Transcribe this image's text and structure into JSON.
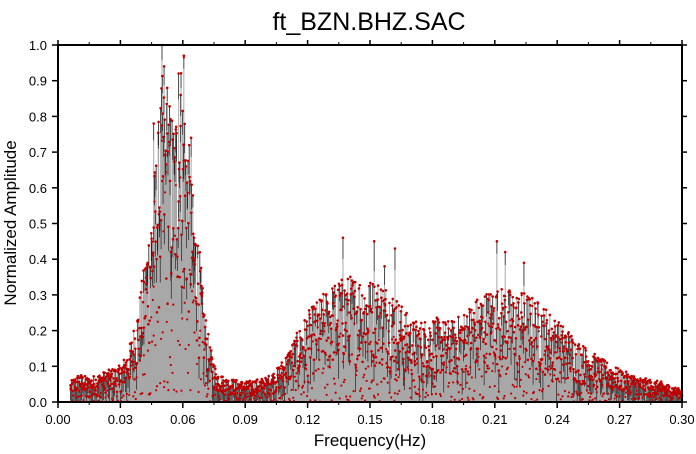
{
  "chart_data": {
    "type": "bar",
    "title": "ft_BZN.BHZ.SAC",
    "xlabel": "Frequency(Hz)",
    "ylabel": "Normalized Amplitude",
    "xlim": [
      0.0,
      0.3
    ],
    "ylim": [
      0.0,
      1.0
    ],
    "x_ticks": [
      "0.00",
      "0.03",
      "0.06",
      "0.09",
      "0.12",
      "0.15",
      "0.18",
      "0.21",
      "0.24",
      "0.27",
      "0.30"
    ],
    "y_ticks": [
      "0.0",
      "0.1",
      "0.2",
      "0.3",
      "0.4",
      "0.5",
      "0.6",
      "0.7",
      "0.8",
      "0.9",
      "1.0"
    ],
    "grid": false,
    "style": "stem bars with red point markers, dense amplitude spectrum",
    "colors": {
      "bar": "#a8a8a8",
      "stem": "#222222",
      "marker": "#c00000"
    },
    "envelope_description": "approximate spectral envelope (frequency Hz, amplitude) traced from the figure",
    "envelope": [
      [
        0.006,
        0.05
      ],
      [
        0.01,
        0.07
      ],
      [
        0.015,
        0.06
      ],
      [
        0.02,
        0.07
      ],
      [
        0.025,
        0.08
      ],
      [
        0.03,
        0.09
      ],
      [
        0.034,
        0.13
      ],
      [
        0.038,
        0.22
      ],
      [
        0.041,
        0.32
      ],
      [
        0.044,
        0.45
      ],
      [
        0.047,
        0.6
      ],
      [
        0.05,
        0.8
      ],
      [
        0.053,
        0.75
      ],
      [
        0.056,
        0.7
      ],
      [
        0.059,
        0.85
      ],
      [
        0.062,
        0.7
      ],
      [
        0.065,
        0.5
      ],
      [
        0.068,
        0.38
      ],
      [
        0.07,
        0.25
      ],
      [
        0.073,
        0.14
      ],
      [
        0.076,
        0.08
      ],
      [
        0.08,
        0.06
      ],
      [
        0.09,
        0.05
      ],
      [
        0.1,
        0.06
      ],
      [
        0.105,
        0.08
      ],
      [
        0.11,
        0.12
      ],
      [
        0.115,
        0.17
      ],
      [
        0.12,
        0.22
      ],
      [
        0.125,
        0.25
      ],
      [
        0.13,
        0.28
      ],
      [
        0.135,
        0.3
      ],
      [
        0.14,
        0.31
      ],
      [
        0.145,
        0.31
      ],
      [
        0.15,
        0.3
      ],
      [
        0.155,
        0.3
      ],
      [
        0.16,
        0.28
      ],
      [
        0.165,
        0.24
      ],
      [
        0.17,
        0.2
      ],
      [
        0.175,
        0.2
      ],
      [
        0.18,
        0.21
      ],
      [
        0.185,
        0.2
      ],
      [
        0.19,
        0.2
      ],
      [
        0.195,
        0.22
      ],
      [
        0.2,
        0.25
      ],
      [
        0.205,
        0.27
      ],
      [
        0.21,
        0.28
      ],
      [
        0.215,
        0.28
      ],
      [
        0.22,
        0.27
      ],
      [
        0.225,
        0.27
      ],
      [
        0.23,
        0.25
      ],
      [
        0.235,
        0.23
      ],
      [
        0.24,
        0.2
      ],
      [
        0.245,
        0.18
      ],
      [
        0.25,
        0.15
      ],
      [
        0.255,
        0.13
      ],
      [
        0.26,
        0.11
      ],
      [
        0.27,
        0.08
      ],
      [
        0.28,
        0.06
      ],
      [
        0.29,
        0.05
      ],
      [
        0.3,
        0.03
      ]
    ],
    "spikes": [
      [
        0.05,
        1.0
      ],
      [
        0.0525,
        0.88
      ],
      [
        0.051,
        0.94
      ],
      [
        0.058,
        0.92
      ],
      [
        0.0605,
        0.97
      ],
      [
        0.059,
        0.86
      ],
      [
        0.046,
        0.78
      ],
      [
        0.064,
        0.74
      ],
      [
        0.137,
        0.46
      ],
      [
        0.152,
        0.45
      ],
      [
        0.162,
        0.43
      ],
      [
        0.211,
        0.45
      ],
      [
        0.215,
        0.42
      ],
      [
        0.157,
        0.38
      ],
      [
        0.224,
        0.39
      ]
    ]
  }
}
